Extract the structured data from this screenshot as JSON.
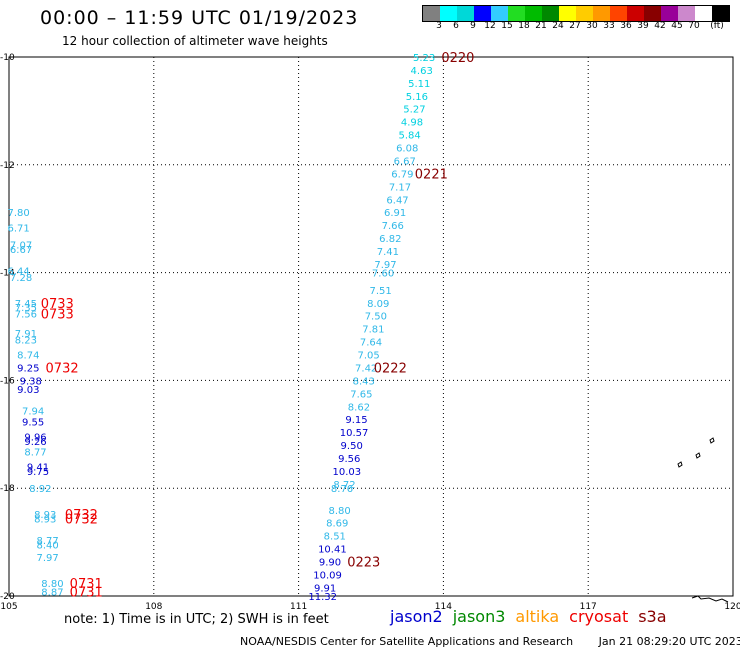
{
  "header": {
    "title": "00:00 – 11:59 UTC 01/19/2023",
    "subtitle": "12 hour collection of altimeter wave heights"
  },
  "colorbar": {
    "colors": [
      "#808080",
      "#00ffff",
      "#00d8d8",
      "#0000ff",
      "#33ccff",
      "#22dd22",
      "#00bb00",
      "#008800",
      "#ffff00",
      "#ffcc00",
      "#ff9900",
      "#ff4400",
      "#cc0000",
      "#880000",
      "#990099",
      "#cc88cc",
      "#ffffff",
      "#000000"
    ],
    "labels": [
      "3",
      "6",
      "9",
      "12",
      "15",
      "18",
      "21",
      "24",
      "27",
      "30",
      "33",
      "36",
      "39",
      "42",
      "45",
      "70",
      "(ft)"
    ]
  },
  "chart_data": {
    "type": "scatter",
    "title": "00:00 – 11:59 UTC 01/19/2023",
    "subtitle": "12 hour collection of altimeter wave heights",
    "xlim": [
      105,
      120
    ],
    "ylim": [
      -20,
      -10
    ],
    "x_ticks": [
      "105",
      "108",
      "111",
      "114",
      "117",
      "120"
    ],
    "y_ticks": [
      "-10",
      "-12",
      "-14",
      "-16",
      "-18",
      "-20"
    ],
    "grid": true,
    "swh_points": [
      {
        "lon": 113.6,
        "lat": -10.0,
        "v": "5.23"
      },
      {
        "lon": 113.55,
        "lat": -10.24,
        "v": "4.63"
      },
      {
        "lon": 113.5,
        "lat": -10.48,
        "v": "5.11"
      },
      {
        "lon": 113.45,
        "lat": -10.72,
        "v": "5.16"
      },
      {
        "lon": 113.4,
        "lat": -10.96,
        "v": "5.27"
      },
      {
        "lon": 113.35,
        "lat": -11.2,
        "v": "4.98"
      },
      {
        "lon": 113.3,
        "lat": -11.44,
        "v": "5.84"
      },
      {
        "lon": 113.25,
        "lat": -11.68,
        "v": "6.08"
      },
      {
        "lon": 113.2,
        "lat": -11.92,
        "v": "6.67"
      },
      {
        "lon": 113.15,
        "lat": -12.16,
        "v": "6.79"
      },
      {
        "lon": 113.1,
        "lat": -12.4,
        "v": "7.17"
      },
      {
        "lon": 113.05,
        "lat": -12.64,
        "v": "6.47"
      },
      {
        "lon": 113.0,
        "lat": -12.88,
        "v": "6.91"
      },
      {
        "lon": 112.95,
        "lat": -13.12,
        "v": "7.66"
      },
      {
        "lon": 112.9,
        "lat": -13.36,
        "v": "6.82"
      },
      {
        "lon": 112.85,
        "lat": -13.6,
        "v": "7.41"
      },
      {
        "lon": 112.8,
        "lat": -13.84,
        "v": "7.97"
      },
      {
        "lon": 112.75,
        "lat": -14.0,
        "v": "7.60"
      },
      {
        "lon": 112.7,
        "lat": -14.32,
        "v": "7.51"
      },
      {
        "lon": 112.65,
        "lat": -14.56,
        "v": "8.09"
      },
      {
        "lon": 112.6,
        "lat": -14.8,
        "v": "7.50"
      },
      {
        "lon": 112.55,
        "lat": -15.04,
        "v": "7.81"
      },
      {
        "lon": 112.5,
        "lat": -15.28,
        "v": "7.64"
      },
      {
        "lon": 112.45,
        "lat": -15.52,
        "v": "7.05"
      },
      {
        "lon": 112.4,
        "lat": -15.76,
        "v": "7.42"
      },
      {
        "lon": 112.35,
        "lat": -16.0,
        "v": "8.43"
      },
      {
        "lon": 112.3,
        "lat": -16.24,
        "v": "7.65"
      },
      {
        "lon": 112.25,
        "lat": -16.48,
        "v": "8.62"
      },
      {
        "lon": 112.2,
        "lat": -16.72,
        "v": "9.15"
      },
      {
        "lon": 112.15,
        "lat": -16.96,
        "v": "10.57"
      },
      {
        "lon": 112.1,
        "lat": -17.2,
        "v": "9.50"
      },
      {
        "lon": 112.05,
        "lat": -17.44,
        "v": "9.56"
      },
      {
        "lon": 112.0,
        "lat": -17.68,
        "v": "10.03"
      },
      {
        "lon": 111.95,
        "lat": -17.92,
        "v": "8.72"
      },
      {
        "lon": 111.9,
        "lat": -18.0,
        "v": "8.76"
      },
      {
        "lon": 111.85,
        "lat": -18.4,
        "v": "8.80"
      },
      {
        "lon": 111.8,
        "lat": -18.64,
        "v": "8.69"
      },
      {
        "lon": 111.75,
        "lat": -18.88,
        "v": "8.51"
      },
      {
        "lon": 111.7,
        "lat": -19.12,
        "v": "10.41"
      },
      {
        "lon": 111.65,
        "lat": -19.36,
        "v": "9.90"
      },
      {
        "lon": 111.6,
        "lat": -19.6,
        "v": "10.09"
      },
      {
        "lon": 111.55,
        "lat": -19.84,
        "v": "9.91"
      },
      {
        "lon": 111.5,
        "lat": -20.0,
        "v": "11.32"
      },
      {
        "lon": 105.2,
        "lat": -12.88,
        "v": "7.80"
      },
      {
        "lon": 105.2,
        "lat": -13.16,
        "v": "6.71"
      },
      {
        "lon": 105.25,
        "lat": -13.48,
        "v": "7.07"
      },
      {
        "lon": 105.25,
        "lat": -13.56,
        "v": "6.67"
      },
      {
        "lon": 105.2,
        "lat": -13.96,
        "v": "6.44"
      },
      {
        "lon": 105.25,
        "lat": -14.08,
        "v": "7.28"
      },
      {
        "lon": 105.35,
        "lat": -14.56,
        "v": "7.45"
      },
      {
        "lon": 105.35,
        "lat": -14.64,
        "v": "7.35"
      },
      {
        "lon": 105.35,
        "lat": -14.76,
        "v": "7.56"
      },
      {
        "lon": 105.35,
        "lat": -15.12,
        "v": "7.91"
      },
      {
        "lon": 105.35,
        "lat": -15.24,
        "v": "8.23"
      },
      {
        "lon": 105.4,
        "lat": -15.52,
        "v": "8.74"
      },
      {
        "lon": 105.4,
        "lat": -15.76,
        "v": "9.25"
      },
      {
        "lon": 105.45,
        "lat": -16.0,
        "v": "9.38"
      },
      {
        "lon": 105.4,
        "lat": -16.16,
        "v": "9.03"
      },
      {
        "lon": 105.5,
        "lat": -16.56,
        "v": "7.94"
      },
      {
        "lon": 105.5,
        "lat": -16.76,
        "v": "9.55"
      },
      {
        "lon": 105.55,
        "lat": -17.04,
        "v": "9.96"
      },
      {
        "lon": 105.55,
        "lat": -17.12,
        "v": "9.26"
      },
      {
        "lon": 105.55,
        "lat": -17.32,
        "v": "8.77"
      },
      {
        "lon": 105.6,
        "lat": -17.6,
        "v": "9.41"
      },
      {
        "lon": 105.6,
        "lat": -17.68,
        "v": "9.75"
      },
      {
        "lon": 105.65,
        "lat": -18.0,
        "v": "8.92"
      },
      {
        "lon": 105.75,
        "lat": -18.48,
        "v": "8.93"
      },
      {
        "lon": 105.75,
        "lat": -18.56,
        "v": "8.93"
      },
      {
        "lon": 105.8,
        "lat": -18.96,
        "v": "8.77"
      },
      {
        "lon": 105.8,
        "lat": -19.04,
        "v": "8.40"
      },
      {
        "lon": 105.8,
        "lat": -19.28,
        "v": "7.97"
      },
      {
        "lon": 105.9,
        "lat": -19.76,
        "v": "8.80"
      },
      {
        "lon": 105.9,
        "lat": -19.92,
        "v": "8.87"
      }
    ],
    "time_labels": [
      {
        "lon": 114.3,
        "lat": -10.0,
        "text": "0220",
        "satellite": "s3a"
      },
      {
        "lon": 113.75,
        "lat": -12.16,
        "text": "0221",
        "satellite": "s3a"
      },
      {
        "lon": 112.9,
        "lat": -15.76,
        "text": "0222",
        "satellite": "s3a"
      },
      {
        "lon": 112.35,
        "lat": -19.36,
        "text": "0223",
        "satellite": "s3a"
      },
      {
        "lon": 106.0,
        "lat": -14.56,
        "text": "0733",
        "satellite": "cryosat"
      },
      {
        "lon": 106.0,
        "lat": -14.76,
        "text": "0733",
        "satellite": "cryosat"
      },
      {
        "lon": 106.1,
        "lat": -15.76,
        "text": "0732",
        "satellite": "cryosat"
      },
      {
        "lon": 106.5,
        "lat": -18.48,
        "text": "0732",
        "satellite": "cryosat"
      },
      {
        "lon": 106.5,
        "lat": -18.56,
        "text": "0732",
        "satellite": "cryosat"
      },
      {
        "lon": 106.6,
        "lat": -19.76,
        "text": "0731",
        "satellite": "cryosat"
      },
      {
        "lon": 106.6,
        "lat": -19.92,
        "text": "0731",
        "satellite": "cryosat"
      }
    ]
  },
  "note": "note: 1) Time is in UTC; 2) SWH is in feet",
  "satellites": [
    {
      "name": "jason2",
      "color": "#0000cc"
    },
    {
      "name": "jason3",
      "color": "#008800"
    },
    {
      "name": "altika",
      "color": "#ff9900"
    },
    {
      "name": "cryosat",
      "color": "#ee0000"
    },
    {
      "name": "s3a",
      "color": "#880000"
    }
  ],
  "footer": {
    "source": "NOAA/NESDIS Center for Satellite Applications and Research",
    "timestamp": "Jan 21 08:29:20 UTC 2023"
  }
}
